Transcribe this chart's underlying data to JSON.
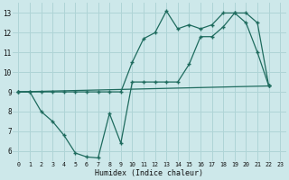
{
  "background_color": "#cde8ea",
  "grid_color": "#afd4d6",
  "line_color": "#1e6b5e",
  "xlabel": "Humidex (Indice chaleur)",
  "xlim": [
    -0.5,
    23.5
  ],
  "ylim": [
    5.5,
    13.5
  ],
  "yticks": [
    6,
    7,
    8,
    9,
    10,
    11,
    12,
    13
  ],
  "xticks": [
    0,
    1,
    2,
    3,
    4,
    5,
    6,
    7,
    8,
    9,
    10,
    11,
    12,
    13,
    14,
    15,
    16,
    17,
    18,
    19,
    20,
    21,
    22,
    23
  ],
  "curve1_x": [
    0,
    1,
    2,
    3,
    4,
    5,
    6,
    7,
    8,
    9,
    10,
    11,
    12,
    13,
    14,
    15,
    16,
    17,
    18,
    19,
    20,
    21,
    22
  ],
  "curve1_y": [
    9.0,
    9.0,
    9.0,
    9.0,
    9.0,
    9.0,
    9.0,
    9.0,
    9.0,
    9.0,
    10.5,
    11.7,
    12.0,
    13.1,
    12.2,
    12.4,
    12.2,
    12.4,
    13.0,
    13.0,
    12.5,
    11.0,
    9.3
  ],
  "curve2_x": [
    0,
    1,
    2,
    3,
    4,
    5,
    6,
    7,
    8,
    9,
    10,
    11,
    12,
    13,
    14,
    15,
    16,
    17,
    18,
    19,
    20,
    21,
    22
  ],
  "curve2_y": [
    9.0,
    9.0,
    8.0,
    7.5,
    6.8,
    5.9,
    5.7,
    5.65,
    7.9,
    6.4,
    9.5,
    9.5,
    9.5,
    9.5,
    9.5,
    10.4,
    11.8,
    11.8,
    12.3,
    13.0,
    13.0,
    12.5,
    9.3
  ],
  "curve3_x": [
    0,
    22
  ],
  "curve3_y": [
    9.0,
    9.3
  ]
}
